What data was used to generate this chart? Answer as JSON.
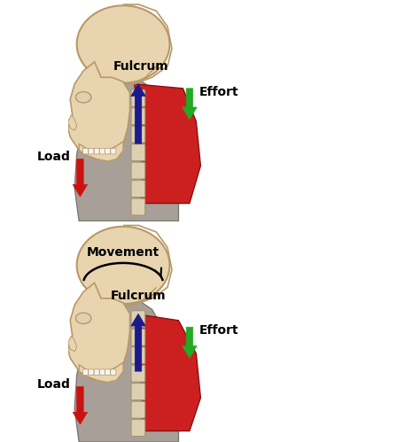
{
  "bg_color": "#ffffff",
  "skull_fill": "#e8d5b0",
  "skull_outline": "#b89868",
  "skin_fill": "#a8a098",
  "muscle_fill": "#cc2020",
  "muscle_edge": "#881010",
  "spine_fill": "#ddd0b0",
  "spine_edge": "#a09070",
  "blue_arrow": "#1a1a8c",
  "red_arrow": "#cc1111",
  "green_arrow": "#22aa22",
  "black_text": "#000000",
  "panel1": {
    "fulcrum_label": "Fulcrum",
    "effort_label": "Effort",
    "load_label": "Load"
  },
  "panel2": {
    "movement_label": "Movement",
    "fulcrum_label": "Fulcrum",
    "effort_label": "Effort",
    "load_label": "Load"
  }
}
